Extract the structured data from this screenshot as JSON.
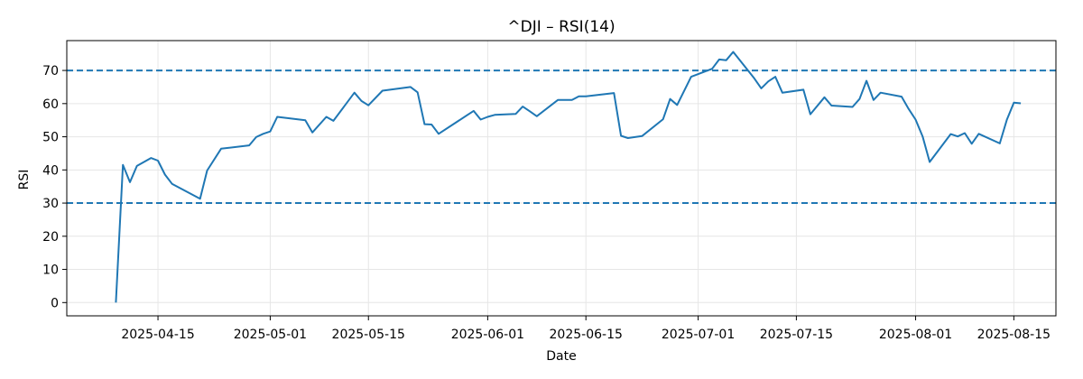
{
  "chart_data": {
    "type": "line",
    "title": "^DJI – RSI(14)",
    "xlabel": "Date",
    "ylabel": "RSI",
    "xlim": [
      "2025-04-02",
      "2025-08-21"
    ],
    "ylim": [
      -4,
      79
    ],
    "yticks": [
      0,
      10,
      20,
      30,
      40,
      50,
      60,
      70
    ],
    "xticks": [
      "2025-04-15",
      "2025-05-01",
      "2025-05-15",
      "2025-06-01",
      "2025-06-15",
      "2025-07-01",
      "2025-07-15",
      "2025-08-01",
      "2025-08-15"
    ],
    "grid": true,
    "colors": {
      "line": "#1f77b4",
      "reference": "#1f77b4",
      "grid": "#e6e6e6"
    },
    "reference_lines": [
      {
        "y": 70,
        "style": "dashed"
      },
      {
        "y": 30,
        "style": "dashed"
      }
    ],
    "series": [
      {
        "x": [
          "2025-04-09",
          "2025-04-10",
          "2025-04-11",
          "2025-04-12",
          "2025-04-14",
          "2025-04-15",
          "2025-04-16",
          "2025-04-17",
          "2025-04-21",
          "2025-04-22",
          "2025-04-24",
          "2025-04-28",
          "2025-04-29",
          "2025-04-30",
          "2025-05-01",
          "2025-05-02",
          "2025-05-06",
          "2025-05-07",
          "2025-05-09",
          "2025-05-10",
          "2025-05-13",
          "2025-05-14",
          "2025-05-15",
          "2025-05-17",
          "2025-05-21",
          "2025-05-22",
          "2025-05-23",
          "2025-05-24",
          "2025-05-25",
          "2025-05-30",
          "2025-05-31",
          "2025-06-01",
          "2025-06-02",
          "2025-06-05",
          "2025-06-06",
          "2025-06-07",
          "2025-06-08",
          "2025-06-11",
          "2025-06-12",
          "2025-06-13",
          "2025-06-14",
          "2025-06-15",
          "2025-06-19",
          "2025-06-20",
          "2025-06-21",
          "2025-06-23",
          "2025-06-26",
          "2025-06-27",
          "2025-06-28",
          "2025-06-30",
          "2025-07-03",
          "2025-07-04",
          "2025-07-05",
          "2025-07-06",
          "2025-07-09",
          "2025-07-10",
          "2025-07-11",
          "2025-07-12",
          "2025-07-13",
          "2025-07-16",
          "2025-07-17",
          "2025-07-19",
          "2025-07-20",
          "2025-07-23",
          "2025-07-24",
          "2025-07-25",
          "2025-07-26",
          "2025-07-27",
          "2025-07-30",
          "2025-07-31",
          "2025-08-01",
          "2025-08-02",
          "2025-08-03",
          "2025-08-06",
          "2025-08-07",
          "2025-08-08",
          "2025-08-09",
          "2025-08-10",
          "2025-08-13",
          "2025-08-14",
          "2025-08-15",
          "2025-08-16"
        ],
        "values": [
          0,
          41.5,
          36.3,
          41.2,
          43.6,
          42.8,
          38.6,
          35.8,
          31.3,
          39.8,
          46.4,
          47.4,
          49.9,
          50.9,
          51.6,
          56,
          55,
          51.3,
          56,
          54.8,
          63.3,
          60.8,
          59.5,
          63.9,
          65,
          63.4,
          53.8,
          53.7,
          50.9,
          57.8,
          55.2,
          56,
          56.6,
          56.9,
          59.1,
          57.7,
          56.2,
          61.1,
          61.1,
          61.1,
          62.2,
          62.2,
          63.2,
          50.3,
          49.6,
          50.2,
          55.3,
          61.4,
          59.6,
          68.1,
          70.5,
          73.3,
          73.1,
          75.6,
          67.6,
          64.6,
          66.7,
          68.1,
          63.3,
          64.2,
          56.8,
          61.9,
          59.4,
          59,
          61.4,
          66.9,
          61.1,
          63.3,
          62.1,
          58.4,
          55.2,
          50.1,
          42.4,
          50.8,
          50.1,
          51.1,
          47.9,
          50.9,
          48,
          55.1,
          60.3,
          60.1
        ]
      }
    ]
  }
}
